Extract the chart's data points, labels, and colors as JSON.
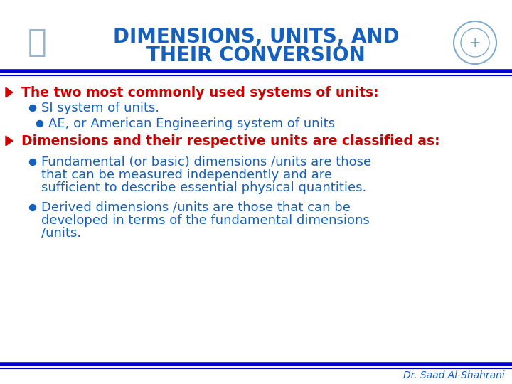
{
  "title_line1": "DIMENSIONS, UNITS, AND",
  "title_line2": "THEIR CONVERSION",
  "title_color": "#1560BD",
  "bg_color": "#FFFFFF",
  "line_color": "#0000CC",
  "arrow_color": "#CC0000",
  "bullet_color": "#1560BD",
  "bullet_main_color": "#CC0000",
  "text_color": "#1560BD",
  "bullet1_text": "The two most commonly used systems of units:",
  "bullet1_sub1": "SI system of units.",
  "bullet1_sub2": "AE, or American Engineering system of units",
  "bullet2_text": "Dimensions and their respective units are classified as:",
  "bullet2_sub1_line1": "Fundamental (or basic) dimensions /units are those",
  "bullet2_sub1_line2": "that can be measured independently and are",
  "bullet2_sub1_line3": "sufficient to describe essential physical quantities.",
  "bullet2_sub2_line1": "Derived dimensions /units are those that can be",
  "bullet2_sub2_line2": "developed in terms of the fundamental dimensions",
  "bullet2_sub2_line3": "/units.",
  "footer": "Dr. Saad Al-Shahrani",
  "footer_color": "#1560BD",
  "font_size_title": 20,
  "font_size_main": 13.5,
  "font_size_sub": 13,
  "font_size_footer": 10
}
